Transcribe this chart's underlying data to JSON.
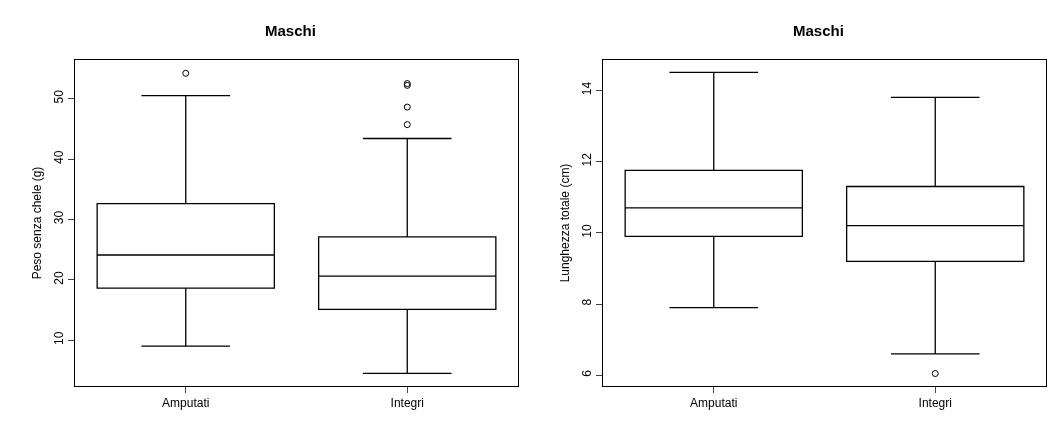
{
  "chart_data": [
    {
      "type": "box",
      "title": "Maschi",
      "ylabel": "Peso senza chele (g)",
      "categories": [
        "Amputati",
        "Integri"
      ],
      "boxes": [
        {
          "low": 9.0,
          "q1": 18.6,
          "median": 24.1,
          "q3": 32.6,
          "high": 50.5,
          "outliers": [
            54.2
          ]
        },
        {
          "low": 4.5,
          "q1": 15.1,
          "median": 20.6,
          "q3": 27.1,
          "high": 43.4,
          "outliers": [
            45.7,
            48.6,
            52.2,
            52.5
          ]
        }
      ],
      "ylim": [
        2.4,
        56.4
      ],
      "yticks": [
        10,
        20,
        30,
        40,
        50
      ],
      "grid": false,
      "marker": "circle"
    },
    {
      "type": "box",
      "title": "Maschi",
      "ylabel": "Lunghezza totale (cm)",
      "categories": [
        "Amputati",
        "Integri"
      ],
      "boxes": [
        {
          "low": 7.9,
          "q1": 9.9,
          "median": 10.7,
          "q3": 11.75,
          "high": 14.5
        },
        {
          "low": 6.6,
          "q1": 9.2,
          "median": 10.2,
          "q3": 11.3,
          "high": 13.8,
          "outliers": [
            6.05
          ]
        }
      ],
      "ylim": [
        5.7,
        14.85
      ],
      "yticks": [
        6,
        8,
        10,
        12,
        14
      ],
      "grid": false,
      "marker": "circle"
    }
  ]
}
